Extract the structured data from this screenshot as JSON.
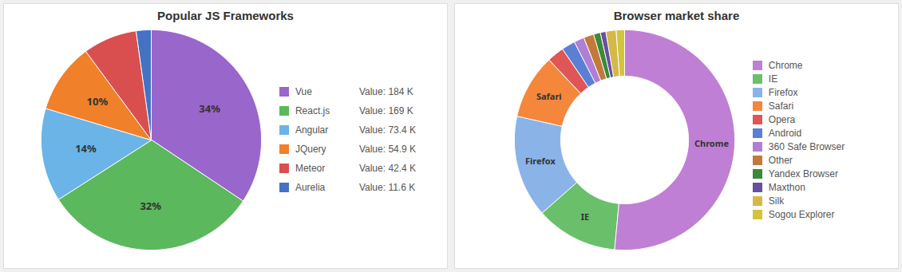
{
  "chart_data": [
    {
      "type": "pie",
      "title": "Popular JS Frameworks",
      "categories": [
        "Vue",
        "React.js",
        "Angular",
        "JQuery",
        "Meteor",
        "Aurelia"
      ],
      "values": [
        184,
        169,
        73.4,
        54.9,
        42.4,
        11.6
      ],
      "value_labels": [
        "Value: 184 K",
        "Value: 169 K",
        "Value: 73.4 K",
        "Value: 54.9 K",
        "Value: 42.4 K",
        "Value: 11.6 K"
      ],
      "colors": [
        "#9966cc",
        "#5cb85c",
        "#6ab4e8",
        "#f0802a",
        "#d94f4f",
        "#4472c4"
      ],
      "percentages": [
        34,
        32,
        14,
        10,
        null,
        null
      ],
      "percentage_labels": [
        "34%",
        "32%",
        "14%",
        "10%",
        null,
        null
      ]
    },
    {
      "type": "donut",
      "title": "Browser market share",
      "categories": [
        "Chrome",
        "IE",
        "Firefox",
        "Safari",
        "Opera",
        "Android",
        "360 Safe Browser",
        "Other",
        "Yandex Browser",
        "Maxthon",
        "Silk",
        "Sogou Explorer"
      ],
      "values": [
        51.5,
        12.0,
        15.0,
        9.5,
        2.5,
        2.0,
        1.5,
        1.5,
        1.0,
        0.8,
        1.5,
        1.2
      ],
      "colors": [
        "#bf7fd4",
        "#6abf6a",
        "#8ab4e8",
        "#f4873c",
        "#e05555",
        "#5b7fd4",
        "#b07fd4",
        "#c17a3a",
        "#3a8a3a",
        "#6a4ea0",
        "#d4b84a",
        "#d4c43a"
      ],
      "slice_labels": [
        "Chrome",
        "IE",
        "Firefox",
        "Safari",
        null,
        null,
        null,
        null,
        null,
        null,
        null,
        null
      ]
    }
  ]
}
